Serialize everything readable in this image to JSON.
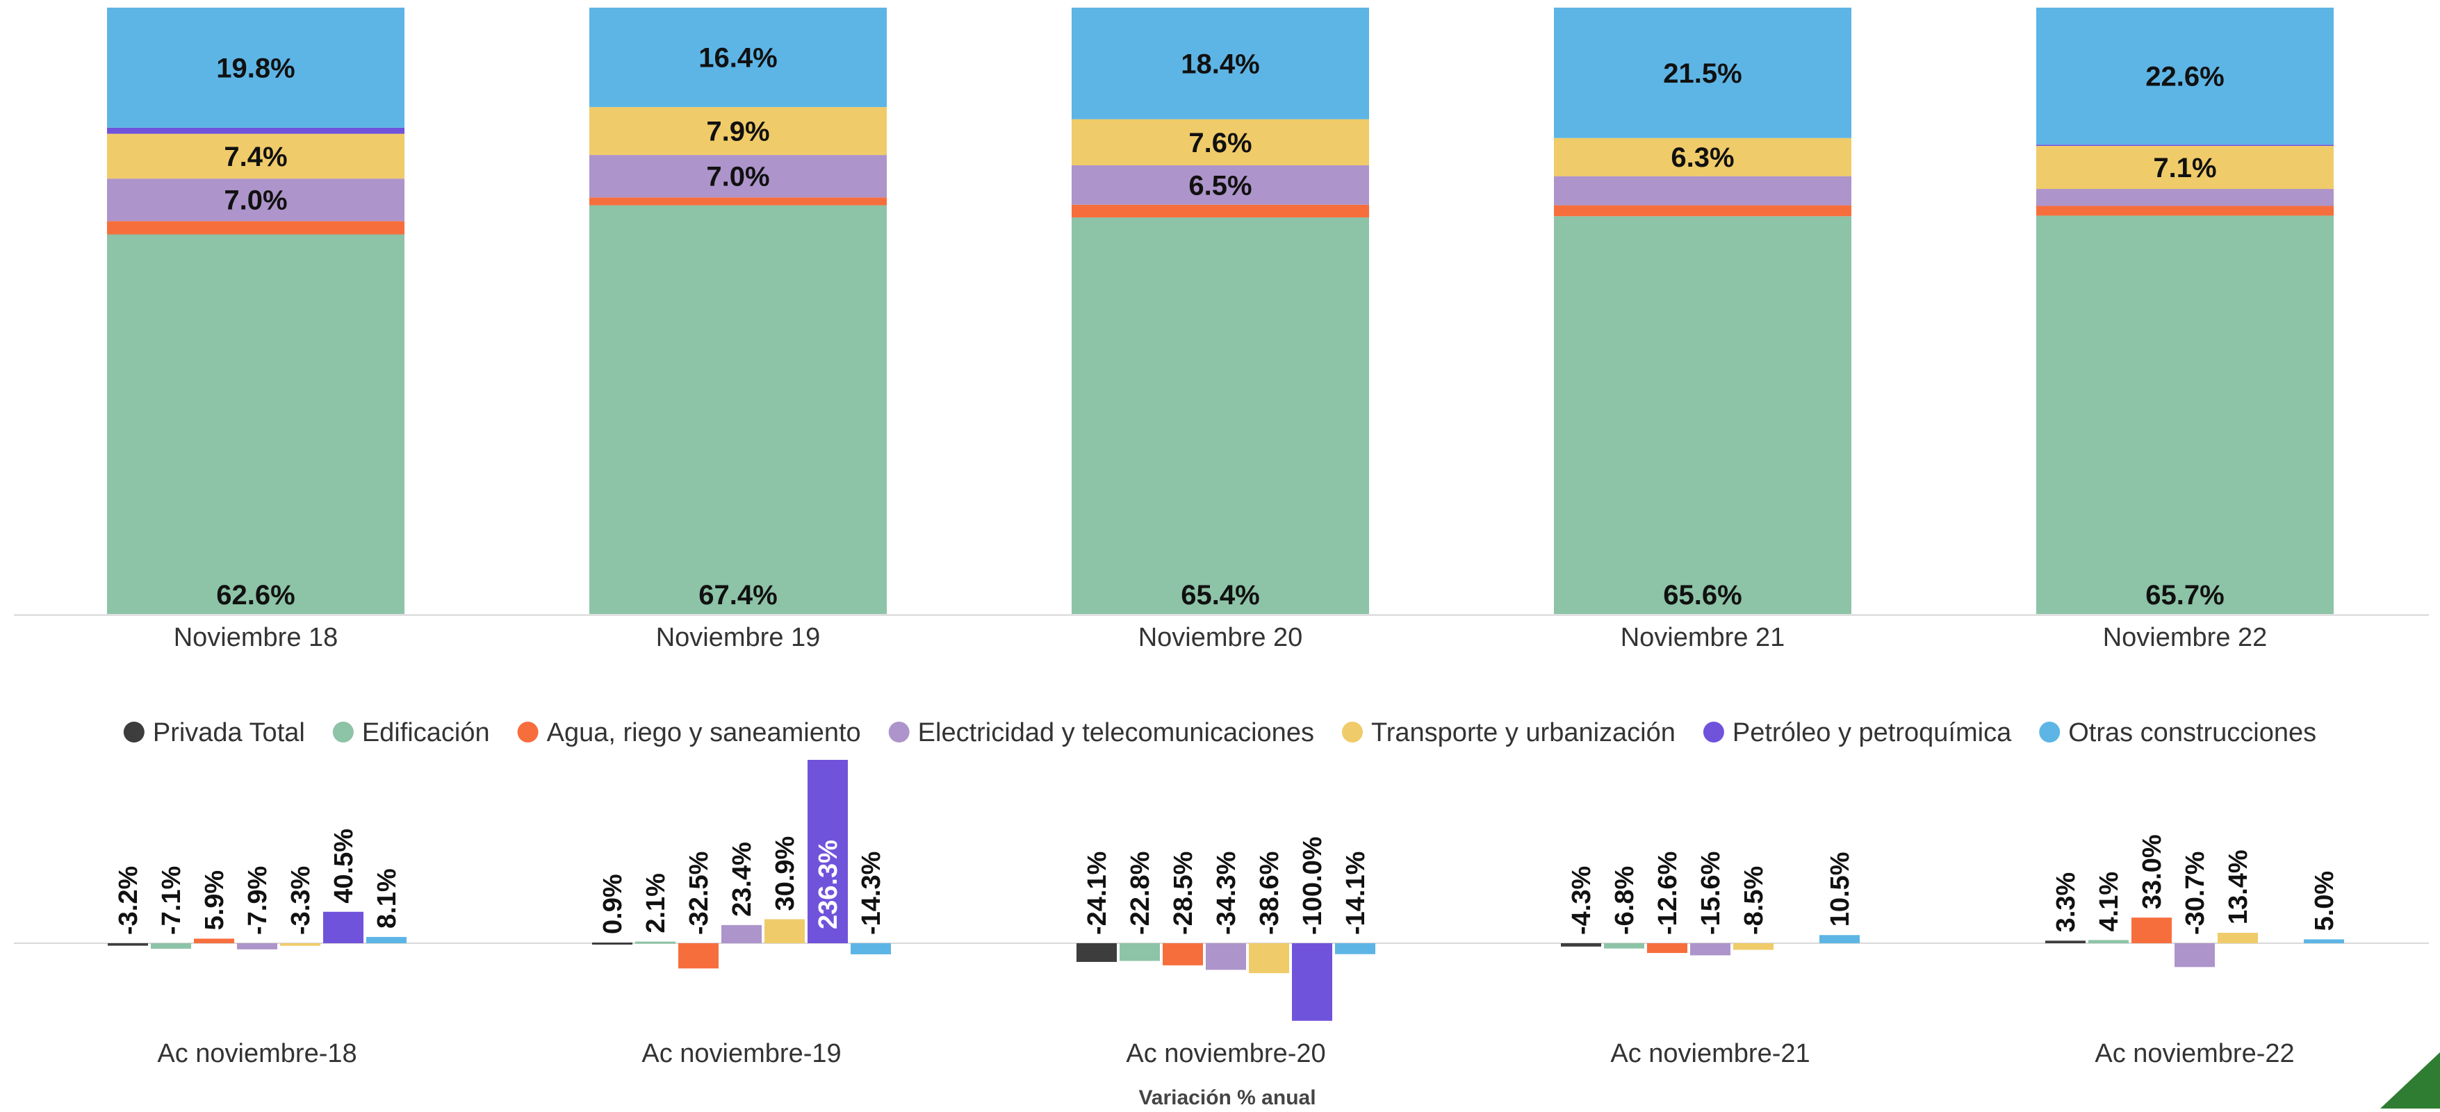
{
  "chart_data": [
    {
      "type": "bar",
      "stacked": true,
      "categories": [
        "Noviembre 18",
        "Noviembre 19",
        "Noviembre 20",
        "Noviembre 21",
        "Noviembre 22"
      ],
      "ylim": [
        0,
        100
      ],
      "grid": false,
      "series": [
        {
          "name": "Edificación",
          "color": "#8DC3A7",
          "values": [
            62.6,
            67.4,
            65.4,
            65.6,
            65.7
          ],
          "labels": [
            "62.6%",
            "67.4%",
            "65.4%",
            "65.6%",
            "65.7%"
          ]
        },
        {
          "name": "Agua, riego y saneamiento",
          "color": "#F76E3D",
          "values": [
            2.2,
            1.3,
            2.1,
            1.8,
            1.6
          ],
          "labels": [
            "",
            "",
            "",
            "",
            ""
          ]
        },
        {
          "name": "Electricidad y telecomunicaciones",
          "color": "#AD94CA",
          "values": [
            7.0,
            7.0,
            6.5,
            4.8,
            2.8
          ],
          "labels": [
            "7.0%",
            "7.0%",
            "6.5%",
            "",
            ""
          ]
        },
        {
          "name": "Transporte y urbanización",
          "color": "#F0CB69",
          "values": [
            7.4,
            7.9,
            7.6,
            6.3,
            7.1
          ],
          "labels": [
            "7.4%",
            "7.9%",
            "7.6%",
            "6.3%",
            "7.1%"
          ]
        },
        {
          "name": "Petróleo y petroquímica",
          "color": "#7053DB",
          "values": [
            1.0,
            0.0,
            0.0,
            0.0,
            0.2
          ],
          "labels": [
            "",
            "",
            "",
            "",
            ""
          ]
        },
        {
          "name": "Otras construcciones",
          "color": "#5DB5E5",
          "values": [
            19.8,
            16.4,
            18.4,
            21.5,
            22.6
          ],
          "labels": [
            "19.8%",
            "16.4%",
            "18.4%",
            "21.5%",
            "22.6%"
          ]
        }
      ]
    },
    {
      "type": "bar",
      "xlabel": "Variación % anual",
      "categories": [
        "Ac noviembre-18",
        "Ac noviembre-19",
        "Ac noviembre-20",
        "Ac noviembre-21",
        "Ac noviembre-22"
      ],
      "legend_position": "top",
      "series": [
        {
          "name": "Privada Total",
          "color": "#3D3D3D",
          "values": [
            -3.2,
            0.9,
            -24.1,
            -4.3,
            3.3
          ],
          "labels": [
            "-3.2%",
            "0.9%",
            "-24.1%",
            "-4.3%",
            "3.3%"
          ]
        },
        {
          "name": "Edificación",
          "color": "#8DC3A7",
          "values": [
            -7.1,
            2.1,
            -22.8,
            -6.8,
            4.1
          ],
          "labels": [
            "-7.1%",
            "2.1%",
            "-22.8%",
            "-6.8%",
            "4.1%"
          ]
        },
        {
          "name": "Agua, riego y saneamiento",
          "color": "#F76E3D",
          "values": [
            5.9,
            -32.5,
            -28.5,
            -12.6,
            33.0
          ],
          "labels": [
            "5.9%",
            "-32.5%",
            "-28.5%",
            "-12.6%",
            "33.0%"
          ]
        },
        {
          "name": "Electricidad y telecomunicaciones",
          "color": "#AD94CA",
          "values": [
            -7.9,
            23.4,
            -34.3,
            -15.6,
            -30.7
          ],
          "labels": [
            "-7.9%",
            "23.4%",
            "-34.3%",
            "-15.6%",
            "-30.7%"
          ]
        },
        {
          "name": "Transporte y urbanización",
          "color": "#F0CB69",
          "values": [
            -3.3,
            30.9,
            -38.6,
            -8.5,
            13.4
          ],
          "labels": [
            "-3.3%",
            "30.9%",
            "-38.6%",
            "-8.5%",
            "13.4%"
          ]
        },
        {
          "name": "Petróleo y petroquímica",
          "color": "#7053DB",
          "values": [
            40.5,
            236.3,
            -100.0,
            null,
            null
          ],
          "labels": [
            "40.5%",
            "236.3%",
            "-100.0%",
            "",
            ""
          ]
        },
        {
          "name": "Otras construcciones",
          "color": "#5DB5E5",
          "values": [
            8.1,
            -14.3,
            -14.1,
            10.5,
            5.0
          ],
          "labels": [
            "8.1%",
            "-14.3%",
            "-14.1%",
            "10.5%",
            "5.0%"
          ]
        }
      ]
    }
  ]
}
